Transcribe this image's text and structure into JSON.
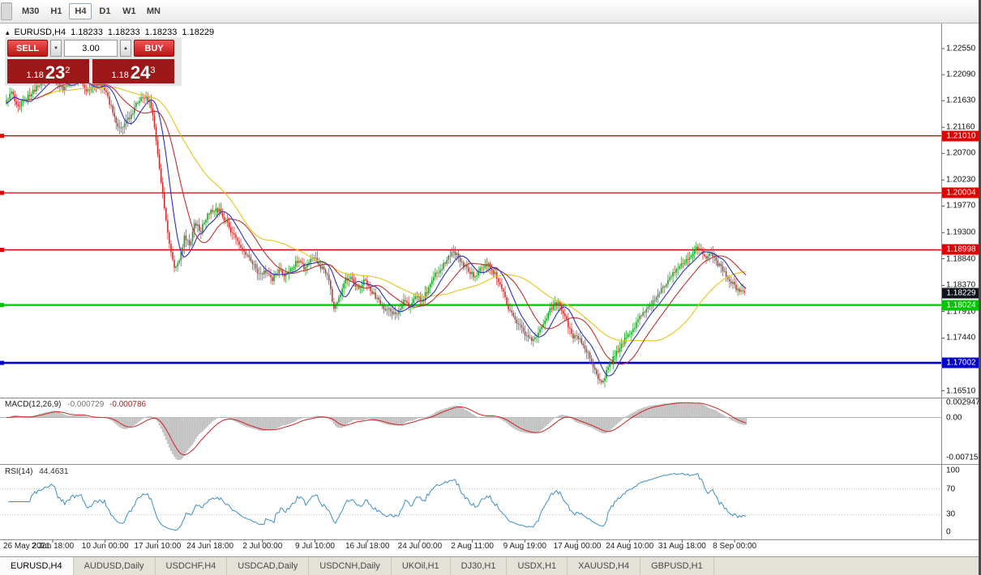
{
  "toolbar": {
    "timeframes": [
      "M30",
      "H1",
      "H4",
      "D1",
      "W1",
      "MN"
    ],
    "active": "H4"
  },
  "header": {
    "symbol": "EURUSD,H4",
    "o": "1.18233",
    "h": "1.18233",
    "l": "1.18233",
    "c": "1.18229"
  },
  "icons": {
    "pointer": "▴",
    "spinner_up": "▲",
    "spinner_down": "▼"
  },
  "trade_panel": {
    "sell_label": "SELL",
    "buy_label": "BUY",
    "volume": "3.00",
    "bid": {
      "prefix": "1.18",
      "big": "23",
      "sup": "2"
    },
    "ask": {
      "prefix": "1.18",
      "big": "24",
      "sup": "3"
    }
  },
  "tabs": {
    "items": [
      "EURUSD,H4",
      "AUDUSD,Daily",
      "USDCHF,H4",
      "USDCAD,Daily",
      "USDCNH,Daily",
      "UKOil,H1",
      "DJ30,H1",
      "USDX,H1",
      "XAUUSD,H4",
      "GBPUSD,H1"
    ],
    "active": "EURUSD,H4"
  },
  "chart_data": {
    "type": "candlestick",
    "symbol": "EURUSD",
    "timeframe": "H4",
    "price_axis_labels": [
      "1.22550",
      "1.22090",
      "1.21630",
      "1.21160",
      "1.20700",
      "1.20230",
      "1.19770",
      "1.19300",
      "1.18840",
      "1.18370",
      "1.17910",
      "1.17440",
      "1.16510"
    ],
    "time_axis_labels": [
      "26 May 2021",
      "2 Jun 18:00",
      "10 Jun 00:00",
      "17 Jun 10:00",
      "24 Jun 18:00",
      "2 Jul 00:00",
      "9 Jul 10:00",
      "16 Jul 18:00",
      "24 Jul 00:00",
      "2 Aug 11:00",
      "9 Aug 19:00",
      "17 Aug 00:00",
      "24 Aug 10:00",
      "31 Aug 18:00",
      "8 Sep 00:00"
    ],
    "horizontal_levels": [
      {
        "price": 1.2101,
        "color": "#e00000",
        "width": 1.3
      },
      {
        "price": 1.20004,
        "color": "#e00000",
        "width": 1.3
      },
      {
        "price": 1.18998,
        "color": "#e00000",
        "width": 1.6
      },
      {
        "price": 1.18024,
        "color": "#00c400",
        "width": 2.2
      },
      {
        "price": 1.17002,
        "color": "#0000cc",
        "width": 2.6
      }
    ],
    "current_price": 1.18229,
    "price_path": [
      [
        8,
        1.2155
      ],
      [
        16,
        1.2178
      ],
      [
        24,
        1.215
      ],
      [
        34,
        1.2168
      ],
      [
        44,
        1.2182
      ],
      [
        54,
        1.2195
      ],
      [
        64,
        1.2211
      ],
      [
        72,
        1.2196
      ],
      [
        80,
        1.2183
      ],
      [
        90,
        1.2198
      ],
      [
        100,
        1.2208
      ],
      [
        108,
        1.2175
      ],
      [
        118,
        1.219
      ],
      [
        128,
        1.2192
      ],
      [
        136,
        1.2165
      ],
      [
        144,
        1.2128
      ],
      [
        152,
        1.2112
      ],
      [
        160,
        1.213
      ],
      [
        170,
        1.2155
      ],
      [
        180,
        1.2172
      ],
      [
        188,
        1.2158
      ],
      [
        194,
        1.2098
      ],
      [
        200,
        1.2028
      ],
      [
        206,
        1.196
      ],
      [
        212,
        1.1898
      ],
      [
        218,
        1.1862
      ],
      [
        224,
        1.1888
      ],
      [
        230,
        1.1925
      ],
      [
        236,
        1.1905
      ],
      [
        242,
        1.1945
      ],
      [
        250,
        1.1935
      ],
      [
        258,
        1.196
      ],
      [
        266,
        1.1972
      ],
      [
        274,
        1.1968
      ],
      [
        282,
        1.1945
      ],
      [
        290,
        1.1928
      ],
      [
        298,
        1.1908
      ],
      [
        306,
        1.1892
      ],
      [
        314,
        1.1878
      ],
      [
        322,
        1.1855
      ],
      [
        330,
        1.1862
      ],
      [
        338,
        1.1848
      ],
      [
        346,
        1.1862
      ],
      [
        354,
        1.1855
      ],
      [
        362,
        1.1868
      ],
      [
        370,
        1.1882
      ],
      [
        378,
        1.1868
      ],
      [
        386,
        1.1888
      ],
      [
        394,
        1.1878
      ],
      [
        402,
        1.1862
      ],
      [
        408,
        1.1845
      ],
      [
        414,
        1.1792
      ],
      [
        420,
        1.1815
      ],
      [
        428,
        1.185
      ],
      [
        436,
        1.1848
      ],
      [
        444,
        1.1832
      ],
      [
        452,
        1.1845
      ],
      [
        460,
        1.1828
      ],
      [
        468,
        1.1812
      ],
      [
        476,
        1.1798
      ],
      [
        484,
        1.1792
      ],
      [
        492,
        1.1788
      ],
      [
        500,
        1.1808
      ],
      [
        508,
        1.1798
      ],
      [
        516,
        1.1818
      ],
      [
        524,
        1.1812
      ],
      [
        532,
        1.1838
      ],
      [
        540,
        1.1858
      ],
      [
        548,
        1.1872
      ],
      [
        556,
        1.1888
      ],
      [
        564,
        1.1895
      ],
      [
        572,
        1.1878
      ],
      [
        580,
        1.1862
      ],
      [
        588,
        1.1852
      ],
      [
        596,
        1.1872
      ],
      [
        604,
        1.1875
      ],
      [
        612,
        1.1858
      ],
      [
        620,
        1.1838
      ],
      [
        628,
        1.1802
      ],
      [
        636,
        1.1778
      ],
      [
        644,
        1.1768
      ],
      [
        652,
        1.1745
      ],
      [
        660,
        1.1738
      ],
      [
        668,
        1.1758
      ],
      [
        676,
        1.1782
      ],
      [
        684,
        1.1802
      ],
      [
        692,
        1.1805
      ],
      [
        700,
        1.1778
      ],
      [
        708,
        1.1748
      ],
      [
        716,
        1.1742
      ],
      [
        724,
        1.1728
      ],
      [
        732,
        1.1698
      ],
      [
        740,
        1.1675
      ],
      [
        746,
        1.1666
      ],
      [
        752,
        1.1692
      ],
      [
        760,
        1.1712
      ],
      [
        768,
        1.1732
      ],
      [
        776,
        1.1748
      ],
      [
        784,
        1.1762
      ],
      [
        792,
        1.1782
      ],
      [
        800,
        1.1792
      ],
      [
        808,
        1.1812
      ],
      [
        816,
        1.1828
      ],
      [
        824,
        1.1842
      ],
      [
        832,
        1.1858
      ],
      [
        840,
        1.1872
      ],
      [
        848,
        1.1882
      ],
      [
        856,
        1.1895
      ],
      [
        862,
        1.1905
      ],
      [
        868,
        1.1898
      ],
      [
        874,
        1.1886
      ],
      [
        880,
        1.1892
      ],
      [
        886,
        1.1876
      ],
      [
        892,
        1.1868
      ],
      [
        898,
        1.1855
      ],
      [
        904,
        1.1842
      ],
      [
        910,
        1.1832
      ],
      [
        916,
        1.1827
      ],
      [
        922,
        1.1823
      ]
    ],
    "macd": {
      "label": "MACD(12,26,9)",
      "main_value": "-0.000729",
      "signal_value": "-0.000786",
      "scale": [
        "0.002947",
        "0.00",
        "-0.007151"
      ]
    },
    "rsi": {
      "label": "RSI(14)",
      "value": "44.4631",
      "scale": [
        "100",
        "70",
        "30",
        "0"
      ]
    }
  }
}
